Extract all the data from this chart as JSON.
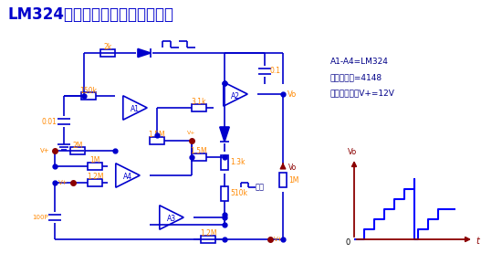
{
  "title": "LM324制作阶梯波发生器实用电路",
  "title_color": "#0000CC",
  "bg_color": "#FFFFFF",
  "circuit_color": "#0000CC",
  "label_color": "#FF8800",
  "right_text_1": "A1-A4=LM324",
  "right_text_2": "所有二极管=4148",
  "right_text_3": "运放疵压大于V+=12V",
  "fuwei": "复位"
}
